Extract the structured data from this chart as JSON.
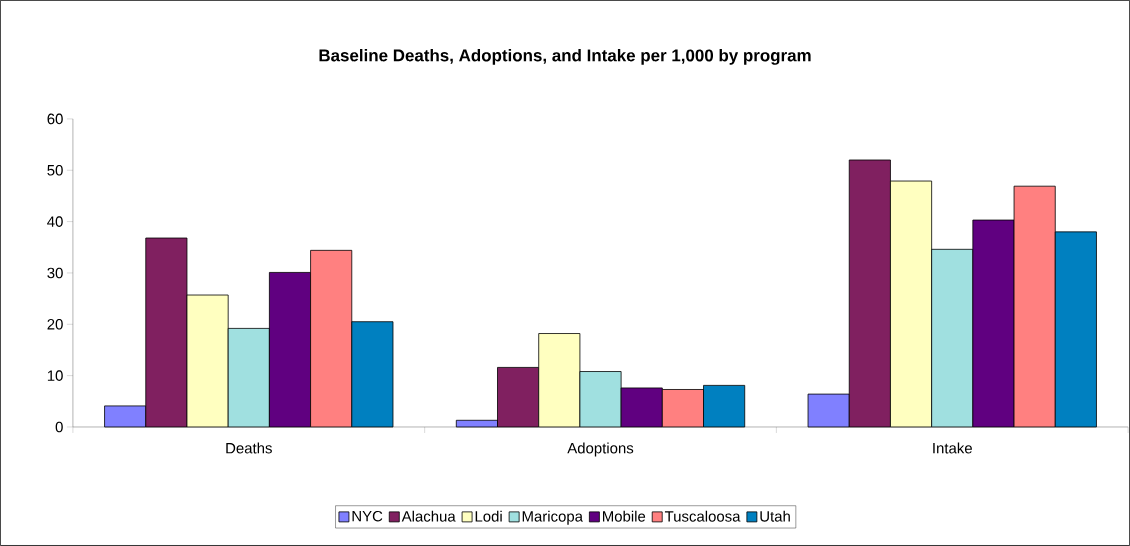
{
  "chart_data": {
    "type": "bar",
    "title": "Baseline Deaths, Adoptions, and Intake per 1,000 by program",
    "categories": [
      "Deaths",
      "Adoptions",
      "Intake"
    ],
    "series": [
      {
        "name": "NYC",
        "color": "#8080ff",
        "values": [
          4.1,
          1.3,
          6.4
        ]
      },
      {
        "name": "Alachua",
        "color": "#802060",
        "values": [
          36.8,
          11.6,
          52.0
        ]
      },
      {
        "name": "Lodi",
        "color": "#ffffc0",
        "values": [
          25.7,
          18.2,
          47.9
        ]
      },
      {
        "name": "Maricopa",
        "color": "#a0e0e0",
        "values": [
          19.2,
          10.8,
          34.6
        ]
      },
      {
        "name": "Mobile",
        "color": "#600080",
        "values": [
          30.1,
          7.6,
          40.3
        ]
      },
      {
        "name": "Tuscaloosa",
        "color": "#ff8080",
        "values": [
          34.4,
          7.3,
          46.9
        ]
      },
      {
        "name": "Utah",
        "color": "#0080c0",
        "values": [
          20.5,
          8.1,
          38.0
        ]
      }
    ],
    "ylim": [
      0,
      60
    ],
    "yticks": [
      0,
      10,
      20,
      30,
      40,
      50,
      60
    ],
    "grid": false,
    "legend": "bottom"
  }
}
